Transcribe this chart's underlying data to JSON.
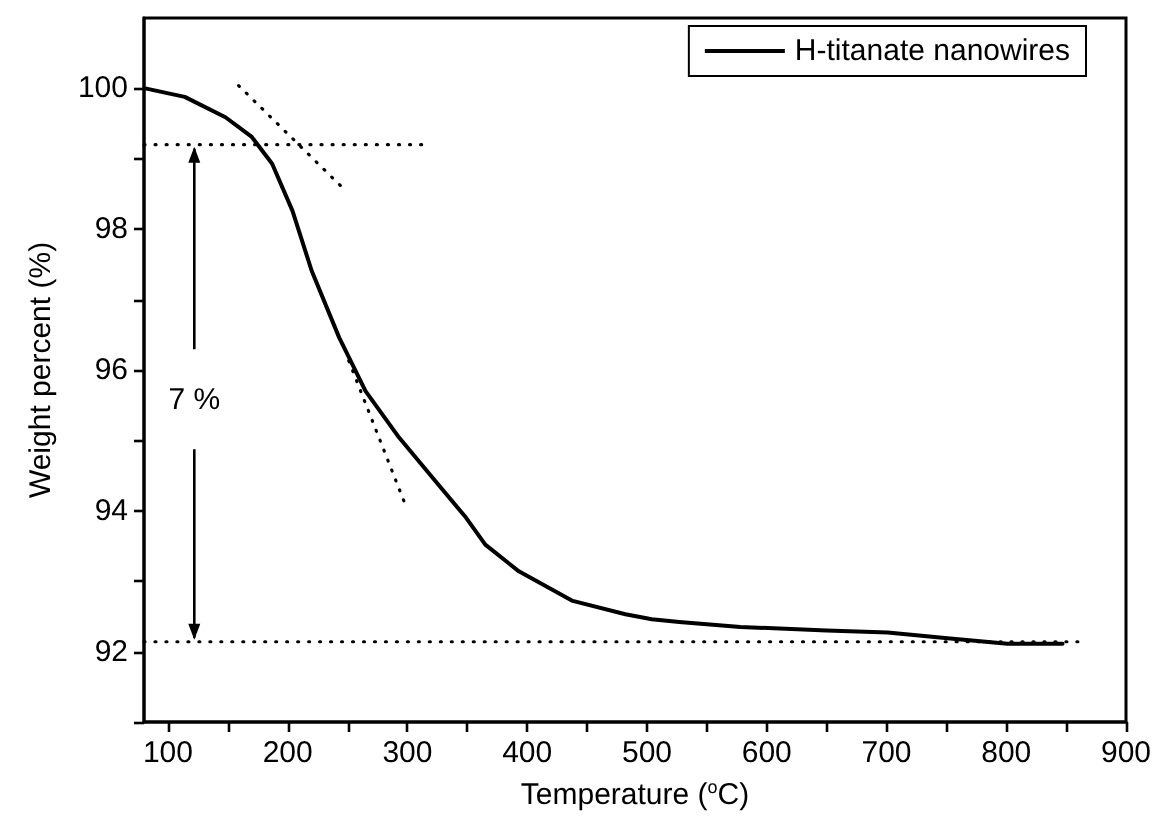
{
  "chart_data": {
    "type": "line",
    "xlabel": "Temperature ($^{o}$C)",
    "ylabel": "Weight percent (%)",
    "xlim": [
      80,
      900
    ],
    "ylim": [
      91,
      101
    ],
    "xticks": [
      100,
      {
        "value": 150,
        "label": null
      },
      200,
      {
        "value": 250,
        "label": null
      },
      300,
      {
        "value": 350,
        "label": null
      },
      400,
      {
        "value": 450,
        "label": null
      },
      500,
      {
        "value": 550,
        "label": null
      },
      600,
      {
        "value": 650,
        "label": null
      },
      700,
      {
        "value": 750,
        "label": null
      },
      800,
      {
        "value": 850,
        "label": null
      },
      900
    ],
    "yticks": [
      {
        "value": 91,
        "label": null
      },
      92,
      {
        "value": 93,
        "label": null
      },
      94,
      {
        "value": 95,
        "label": null
      },
      96,
      {
        "value": 97,
        "label": null
      },
      98,
      {
        "value": 99,
        "label": null
      },
      100
    ],
    "grid": false,
    "legend": "top right",
    "marker": "none",
    "annotations": [
      {
        "text": "7 %",
        "x": 122,
        "y": 99.2
      }
    ],
    "series": [
      {
        "name": "H-titanate nanowires",
        "color": "#000000",
        "line_style": "solid",
        "x": [
          81,
          114,
          148,
          170,
          187,
          204,
          220,
          243,
          265,
          293,
          321,
          349,
          365,
          393,
          438,
          482,
          504,
          527,
          578,
          650,
          701,
          751,
          801,
          847
        ],
        "values": [
          100,
          99.88,
          99.59,
          99.31,
          98.93,
          98.26,
          97.41,
          96.46,
          95.7,
          95.04,
          94.47,
          93.9,
          93.52,
          93.14,
          92.72,
          92.53,
          92.46,
          92.42,
          92.35,
          92.3,
          92.27,
          92.19,
          92.11,
          92.11
        ]
      },
      {
        "color": "#000000",
        "line_style": "dotted",
        "x": [
          159,
          244
        ],
        "values": [
          100.04,
          98.62
        ]
      },
      {
        "color": "#000000",
        "line_style": "dotted",
        "x": [
          251,
          297
        ],
        "values": [
          96.13,
          94.14
        ]
      },
      {
        "color": "#000000",
        "line_style": "dotted",
        "x": [
          80,
          312
        ],
        "values": [
          99.2,
          99.2
        ]
      },
      {
        "color": "#000000",
        "line_style": "dotted",
        "x": [
          80,
          860
        ],
        "values": [
          92.14,
          92.14
        ]
      }
    ]
  }
}
